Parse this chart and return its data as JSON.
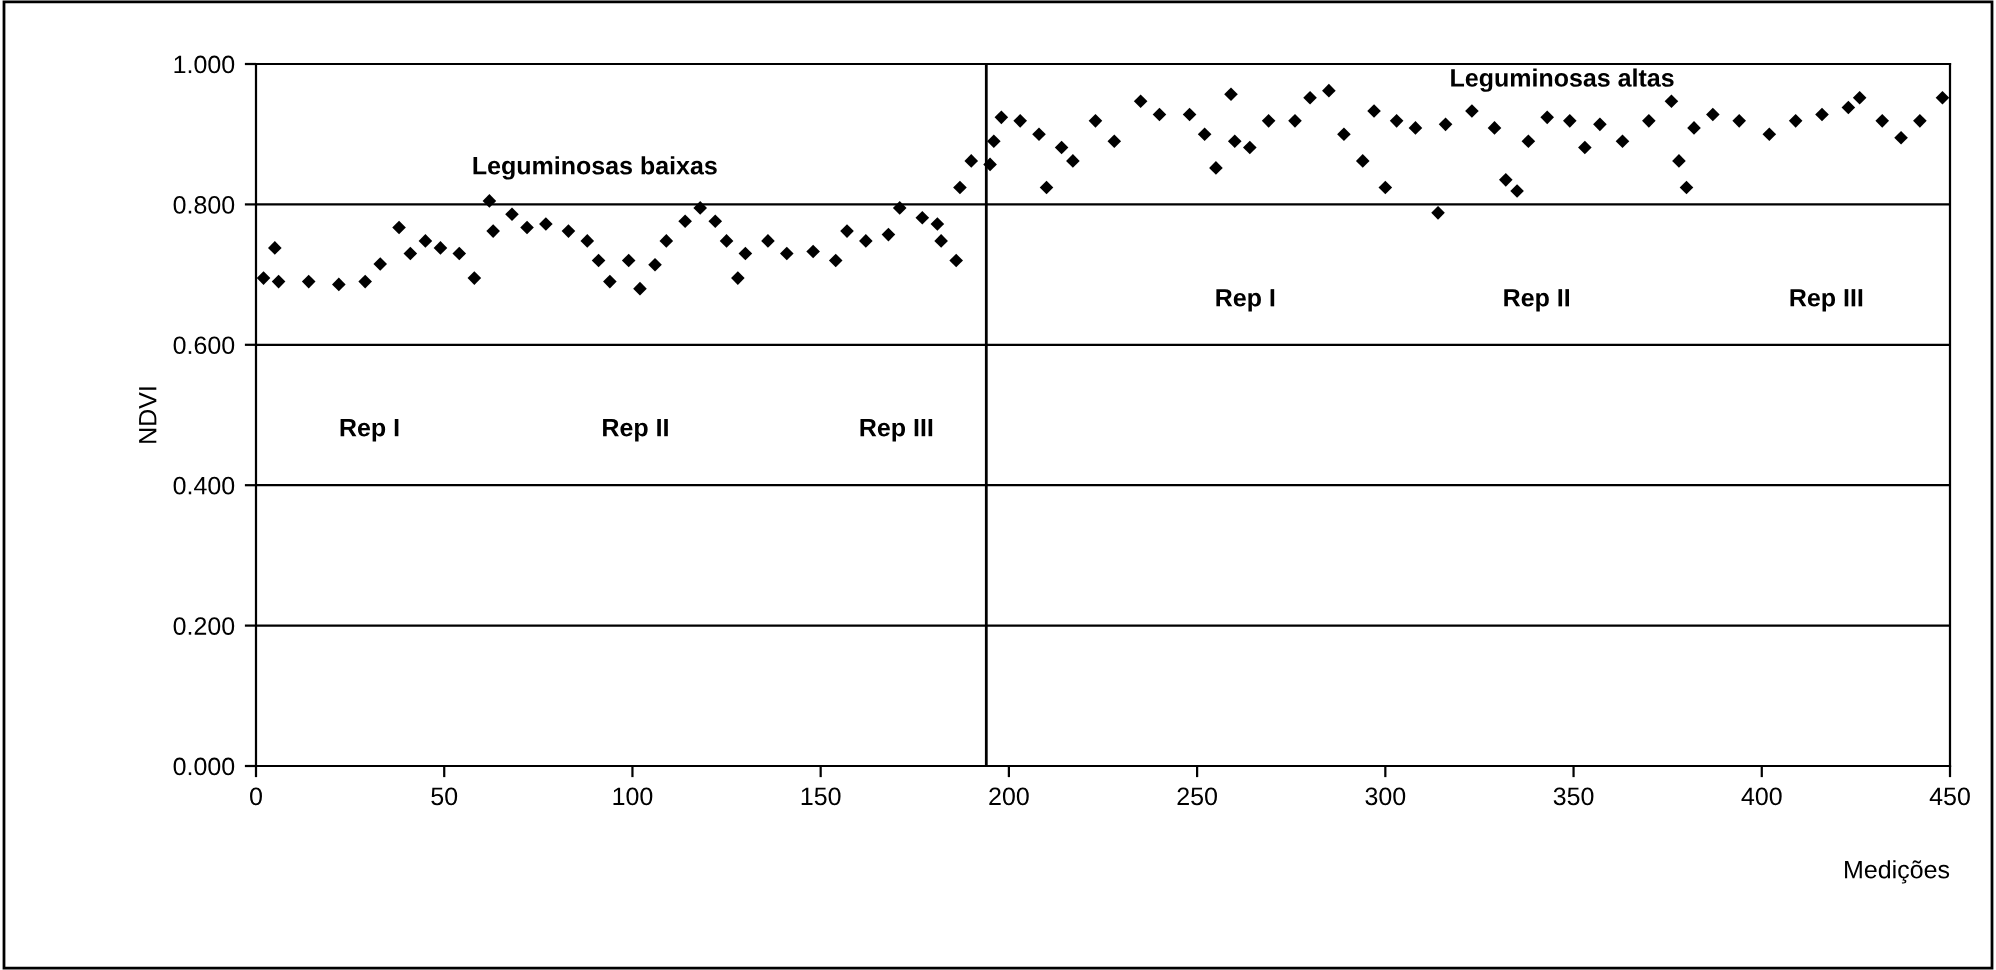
{
  "chart_data": {
    "type": "scatter",
    "xlabel": "Medições",
    "ylabel": "NDVI",
    "x": [
      2,
      5,
      6,
      14,
      22,
      29,
      33,
      38,
      41,
      45,
      49,
      54,
      58,
      62,
      63,
      68,
      72,
      77,
      83,
      88,
      91,
      94,
      99,
      102,
      106,
      109,
      114,
      118,
      122,
      125,
      128,
      130,
      136,
      141,
      148,
      154,
      157,
      162,
      168,
      171,
      177,
      181,
      182,
      186,
      187,
      190,
      195,
      196,
      198,
      203,
      208,
      210,
      214,
      217,
      223,
      228,
      235,
      240,
      248,
      252,
      255,
      259,
      260,
      264,
      269,
      276,
      280,
      285,
      289,
      294,
      297,
      300,
      303,
      308,
      314,
      316,
      323,
      329,
      332,
      335,
      338,
      343,
      349,
      353,
      357,
      363,
      370,
      376,
      378,
      380,
      382,
      387,
      394,
      402,
      409,
      416,
      423,
      426,
      432,
      437,
      442,
      448
    ],
    "series": [
      {
        "color": "#000000",
        "values": [
          0.695,
          0.738,
          0.69,
          0.69,
          0.686,
          0.69,
          0.715,
          0.767,
          0.73,
          0.748,
          0.738,
          0.73,
          0.695,
          0.805,
          0.762,
          0.786,
          0.767,
          0.772,
          0.762,
          0.748,
          0.72,
          0.69,
          0.72,
          0.68,
          0.714,
          0.748,
          0.776,
          0.795,
          0.776,
          0.748,
          0.695,
          0.73,
          0.748,
          0.73,
          0.733,
          0.72,
          0.762,
          0.748,
          0.757,
          0.795,
          0.781,
          0.772,
          0.748,
          0.72,
          0.824,
          0.862,
          0.857,
          0.89,
          0.924,
          0.919,
          0.9,
          0.824,
          0.881,
          0.862,
          0.919,
          0.89,
          0.947,
          0.928,
          0.928,
          0.9,
          0.852,
          0.957,
          0.89,
          0.881,
          0.919,
          0.919,
          0.952,
          0.962,
          0.9,
          0.862,
          0.933,
          0.824,
          0.919,
          0.909,
          0.788,
          0.914,
          0.933,
          0.909,
          0.835,
          0.819,
          0.89,
          0.924,
          0.919,
          0.881,
          0.914,
          0.89,
          0.919,
          0.947,
          0.862,
          0.824,
          0.909,
          0.928,
          0.919,
          0.9,
          0.919,
          0.928,
          0.938,
          0.952,
          0.919,
          0.895,
          0.919,
          0.952
        ]
      }
    ],
    "marker": "diamond",
    "xlim": [
      0,
      450
    ],
    "xticks": [
      0,
      50,
      100,
      150,
      200,
      250,
      300,
      350,
      400,
      450
    ],
    "ylim": [
      0,
      1
    ],
    "yticks": [
      {
        "value": 0,
        "label": "0.000"
      },
      {
        "value": 0.2,
        "label": "0.200"
      },
      {
        "value": 0.4,
        "label": "0.400"
      },
      {
        "value": 0.6,
        "label": "0.600"
      },
      {
        "value": 0.8,
        "label": "0.800"
      },
      {
        "value": 1,
        "label": "1.000"
      }
    ],
    "grid": "y",
    "ref_lines": [
      {
        "axis": "x",
        "value": 194,
        "color": "#000000"
      }
    ],
    "annotations": [
      "Leguminosas baixas",
      "Leguminosas altas",
      "Rep I",
      "Rep II",
      "Rep III",
      "Rep I",
      "Rep II",
      "Rep III"
    ]
  }
}
